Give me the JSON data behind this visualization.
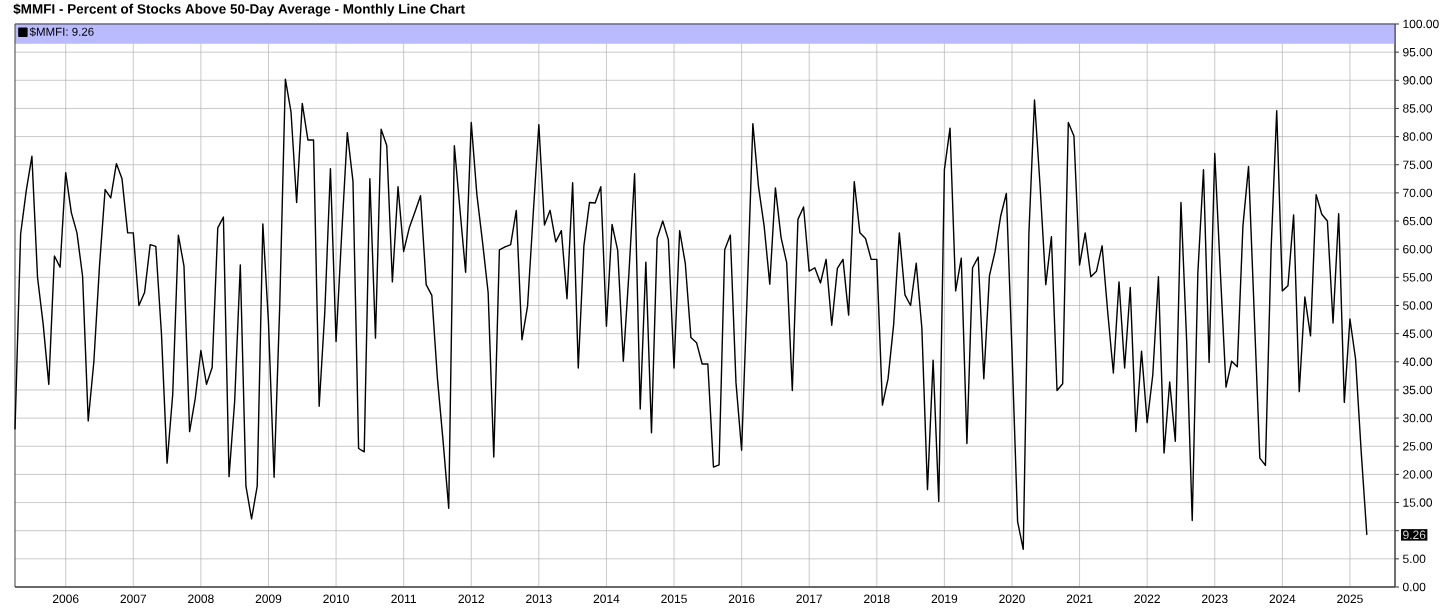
{
  "chart_data": {
    "type": "line",
    "title": "$MMFI - Percent of Stocks Above 50-Day Average - Monthly Line Chart",
    "x": [
      "2005-04",
      "2005-05",
      "2005-06",
      "2005-07",
      "2005-08",
      "2005-09",
      "2005-10",
      "2005-11",
      "2005-12",
      "2006-01",
      "2006-02",
      "2006-03",
      "2006-04",
      "2006-05",
      "2006-06",
      "2006-07",
      "2006-08",
      "2006-09",
      "2006-10",
      "2006-11",
      "2006-12",
      "2007-01",
      "2007-02",
      "2007-03",
      "2007-04",
      "2007-05",
      "2007-06",
      "2007-07",
      "2007-08",
      "2007-09",
      "2007-10",
      "2007-11",
      "2007-12",
      "2008-01",
      "2008-02",
      "2008-03",
      "2008-04",
      "2008-05",
      "2008-06",
      "2008-07",
      "2008-08",
      "2008-09",
      "2008-10",
      "2008-11",
      "2008-12",
      "2009-01",
      "2009-02",
      "2009-03",
      "2009-04",
      "2009-05",
      "2009-06",
      "2009-07",
      "2009-08",
      "2009-09",
      "2009-10",
      "2009-11",
      "2009-12",
      "2010-01",
      "2010-02",
      "2010-03",
      "2010-04",
      "2010-05",
      "2010-06",
      "2010-07",
      "2010-08",
      "2010-09",
      "2010-10",
      "2010-11",
      "2010-12",
      "2011-01",
      "2011-02",
      "2011-03",
      "2011-04",
      "2011-05",
      "2011-06",
      "2011-07",
      "2011-08",
      "2011-09",
      "2011-10",
      "2011-11",
      "2011-12",
      "2012-01",
      "2012-02",
      "2012-03",
      "2012-04",
      "2012-05",
      "2012-06",
      "2012-07",
      "2012-08",
      "2012-09",
      "2012-10",
      "2012-11",
      "2012-12",
      "2013-01",
      "2013-02",
      "2013-03",
      "2013-04",
      "2013-05",
      "2013-06",
      "2013-07",
      "2013-08",
      "2013-09",
      "2013-10",
      "2013-11",
      "2013-12",
      "2014-01",
      "2014-02",
      "2014-03",
      "2014-04",
      "2014-05",
      "2014-06",
      "2014-07",
      "2014-08",
      "2014-09",
      "2014-10",
      "2014-11",
      "2014-12",
      "2015-01",
      "2015-02",
      "2015-03",
      "2015-04",
      "2015-05",
      "2015-06",
      "2015-07",
      "2015-08",
      "2015-09",
      "2015-10",
      "2015-11",
      "2015-12",
      "2016-01",
      "2016-02",
      "2016-03",
      "2016-04",
      "2016-05",
      "2016-06",
      "2016-07",
      "2016-08",
      "2016-09",
      "2016-10",
      "2016-11",
      "2016-12",
      "2017-01",
      "2017-02",
      "2017-03",
      "2017-04",
      "2017-05",
      "2017-06",
      "2017-07",
      "2017-08",
      "2017-09",
      "2017-10",
      "2017-11",
      "2017-12",
      "2018-01",
      "2018-02",
      "2018-03",
      "2018-04",
      "2018-05",
      "2018-06",
      "2018-07",
      "2018-08",
      "2018-09",
      "2018-10",
      "2018-11",
      "2018-12",
      "2019-01",
      "2019-02",
      "2019-03",
      "2019-04",
      "2019-05",
      "2019-06",
      "2019-07",
      "2019-08",
      "2019-09",
      "2019-10",
      "2019-11",
      "2019-12",
      "2020-01",
      "2020-02",
      "2020-03",
      "2020-04",
      "2020-05",
      "2020-06",
      "2020-07",
      "2020-08",
      "2020-09",
      "2020-10",
      "2020-11",
      "2020-12",
      "2021-01",
      "2021-02",
      "2021-03",
      "2021-04",
      "2021-05",
      "2021-06",
      "2021-07",
      "2021-08",
      "2021-09",
      "2021-10",
      "2021-11",
      "2021-12",
      "2022-01",
      "2022-02",
      "2022-03",
      "2022-04",
      "2022-05",
      "2022-06",
      "2022-07",
      "2022-08",
      "2022-09",
      "2022-10",
      "2022-11",
      "2022-12",
      "2023-01",
      "2023-02",
      "2023-03",
      "2023-04",
      "2023-05",
      "2023-06",
      "2023-07",
      "2023-08",
      "2023-09",
      "2023-10",
      "2023-11",
      "2023-12",
      "2024-01",
      "2024-02",
      "2024-03",
      "2024-04",
      "2024-05",
      "2024-06",
      "2024-07",
      "2024-08",
      "2024-09",
      "2024-10",
      "2024-11",
      "2024-12",
      "2025-01",
      "2025-02",
      "2025-03",
      "2025-04"
    ],
    "series": [
      {
        "name": "$MMFI: 9.26",
        "color": "#000000",
        "values": [
          28,
          62.7,
          70.4,
          76.5,
          55,
          46.7,
          36,
          58.8,
          56.8,
          73.6,
          66.5,
          62.9,
          55.2,
          29.5,
          40,
          57,
          70.6,
          69.1,
          75.2,
          72.5,
          62.9,
          62.9,
          50,
          52.3,
          60.8,
          60.5,
          45,
          22,
          34.2,
          62.5,
          57,
          27.6,
          33.5,
          42,
          36,
          39,
          63.8,
          65.7,
          19.6,
          33,
          57.2,
          17.9,
          12.1,
          17.9,
          64.5,
          47,
          19.5,
          50,
          90.2,
          84.4,
          68.3,
          85.9,
          79.4,
          79.4,
          32.1,
          48.8,
          74.3,
          43.6,
          62.7,
          80.7,
          72.1,
          24.6,
          24,
          72.5,
          44.2,
          81.3,
          78.4,
          54.2,
          71.1,
          59.6,
          63.8,
          66.6,
          69.5,
          53.7,
          51.8,
          37,
          25.9,
          14,
          78.4,
          67,
          55.9,
          82.5,
          69.7,
          61.3,
          52.3,
          23.1,
          59.9,
          60.4,
          60.8,
          66.9,
          43.9,
          49.9,
          66.2,
          82.1,
          64.3,
          66.9,
          61.3,
          63.3,
          51.2,
          71.8,
          38.9,
          60.6,
          68.3,
          68.2,
          71.1,
          46.3,
          64.4,
          59.8,
          40.1,
          55.8,
          73.4,
          31.6,
          57.7,
          27.4,
          61.9,
          65,
          61.7,
          38.9,
          63.3,
          57.5,
          44.3,
          43.4,
          39.6,
          39.6,
          21.3,
          21.7,
          59.9,
          62.5,
          36.3,
          24.3,
          52.3,
          82.3,
          71.1,
          64.1,
          53.8,
          70.9,
          62.1,
          57.6,
          34.9,
          65.3,
          67.5,
          56.1,
          56.7,
          54,
          58.2,
          46.5,
          56.6,
          58.2,
          48.3,
          72,
          62.9,
          61.9,
          58.2,
          58.2,
          32.3,
          37,
          46.7,
          62.9,
          51.9,
          50,
          57.5,
          46,
          17.3,
          40.3,
          15.2,
          74.1,
          81.5,
          52.6,
          58.4,
          25.5,
          56.7,
          58.6,
          37,
          55.3,
          59.6,
          65.9,
          69.9,
          41.9,
          11.6,
          6.7,
          62.7,
          86.5,
          71.1,
          53.7,
          62.2,
          34.9,
          36.1,
          82.5,
          80.1,
          57.2,
          62.9,
          55.1,
          56.1,
          60.6,
          48.8,
          38,
          54.2,
          38.9,
          53.2,
          27.6,
          41.9,
          29.2,
          37.7,
          55.1,
          23.8,
          36.4,
          25.9,
          68.3,
          44,
          11.8,
          55.8,
          74.1,
          39.9,
          77,
          55.8,
          35.5,
          40.1,
          39.1,
          64.1,
          74.7,
          48.8,
          22.9,
          21.6,
          59.9,
          84.6,
          52.6,
          53.5,
          66.1,
          34.7,
          51.5,
          44.6,
          69.7,
          66.2,
          65,
          46.9,
          66.3,
          32.8,
          47.6,
          40.5,
          24,
          9.26
        ]
      }
    ],
    "xlim": [
      "2005-04",
      "2025-09"
    ],
    "xticks": [
      {
        "value": "2006-01",
        "label": "2006"
      },
      {
        "value": "2007-01",
        "label": "2007"
      },
      {
        "value": "2008-01",
        "label": "2008"
      },
      {
        "value": "2009-01",
        "label": "2009"
      },
      {
        "value": "2010-01",
        "label": "2010"
      },
      {
        "value": "2011-01",
        "label": "2011"
      },
      {
        "value": "2012-01",
        "label": "2012"
      },
      {
        "value": "2013-01",
        "label": "2013"
      },
      {
        "value": "2014-01",
        "label": "2014"
      },
      {
        "value": "2015-01",
        "label": "2015"
      },
      {
        "value": "2016-01",
        "label": "2016"
      },
      {
        "value": "2017-01",
        "label": "2017"
      },
      {
        "value": "2018-01",
        "label": "2018"
      },
      {
        "value": "2019-01",
        "label": "2019"
      },
      {
        "value": "2020-01",
        "label": "2020"
      },
      {
        "value": "2021-01",
        "label": "2021"
      },
      {
        "value": "2022-01",
        "label": "2022"
      },
      {
        "value": "2023-01",
        "label": "2023"
      },
      {
        "value": "2024-01",
        "label": "2024"
      },
      {
        "value": "2025-01",
        "label": "2025"
      }
    ],
    "ylim": [
      0,
      100
    ],
    "yticks": [
      {
        "value": 0,
        "label": "0.00"
      },
      {
        "value": 5,
        "label": "5.00"
      },
      {
        "value": 10,
        "label": null
      },
      {
        "value": 15,
        "label": "15.00"
      },
      {
        "value": 20,
        "label": "20.00"
      },
      {
        "value": 25,
        "label": "25.00"
      },
      {
        "value": 30,
        "label": "30.00"
      },
      {
        "value": 35,
        "label": "35.00"
      },
      {
        "value": 40,
        "label": "40.00"
      },
      {
        "value": 45,
        "label": "45.00"
      },
      {
        "value": 50,
        "label": "50.00"
      },
      {
        "value": 55,
        "label": "55.00"
      },
      {
        "value": 60,
        "label": "60.00"
      },
      {
        "value": 65,
        "label": "65.00"
      },
      {
        "value": 70,
        "label": "70.00"
      },
      {
        "value": 75,
        "label": "75.00"
      },
      {
        "value": 80,
        "label": "80.00"
      },
      {
        "value": 85,
        "label": "85.00"
      },
      {
        "value": 90,
        "label": "90.00"
      },
      {
        "value": 95,
        "label": "95.00"
      },
      {
        "value": 100,
        "label": "100.00"
      }
    ],
    "grid": true,
    "legend": "top left",
    "bands": [
      {
        "axis": "y",
        "from": 96.5,
        "to": 100,
        "color": "#babaff"
      }
    ],
    "annotations": [
      "9.26"
    ]
  }
}
